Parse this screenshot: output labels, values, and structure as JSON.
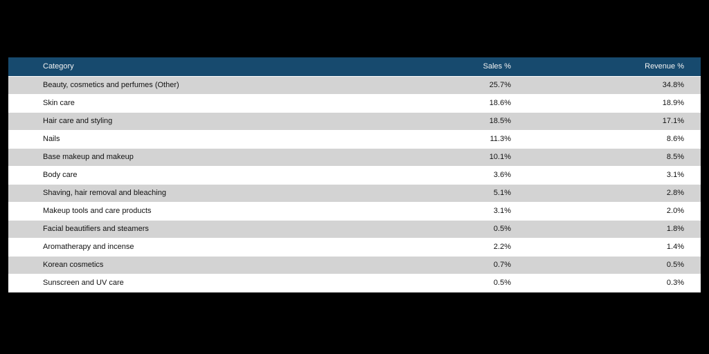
{
  "page": {
    "background_color": "#000000"
  },
  "table": {
    "columns": [
      {
        "id": "category",
        "label": "Category",
        "align": "left"
      },
      {
        "id": "sales",
        "label": "Sales %",
        "align": "right"
      },
      {
        "id": "revenue",
        "label": "Revenue %",
        "align": "right"
      }
    ],
    "colors": {
      "header_bg": "#174a6e",
      "header_text": "#f2f2f2",
      "row_alt_bg": "#d3d3d3",
      "row_bg": "#ffffff",
      "row_text": "#111111",
      "row_border": "#ffffff"
    }
  },
  "chart_data": {
    "type": "table",
    "title": "",
    "columns": [
      "Category",
      "Sales %",
      "Revenue %"
    ],
    "rows": [
      {
        "category": "Beauty, cosmetics and perfumes (Other)",
        "sales": "25.7%",
        "revenue": "34.8%"
      },
      {
        "category": "Skin care",
        "sales": "18.6%",
        "revenue": "18.9%"
      },
      {
        "category": "Hair care and styling",
        "sales": "18.5%",
        "revenue": "17.1%"
      },
      {
        "category": "Nails",
        "sales": "11.3%",
        "revenue": "8.6%"
      },
      {
        "category": "Base makeup and makeup",
        "sales": "10.1%",
        "revenue": "8.5%"
      },
      {
        "category": "Body care",
        "sales": "3.6%",
        "revenue": "3.1%"
      },
      {
        "category": "Shaving, hair removal and bleaching",
        "sales": "5.1%",
        "revenue": "2.8%"
      },
      {
        "category": "Makeup tools and care products",
        "sales": "3.1%",
        "revenue": "2.0%"
      },
      {
        "category": "Facial beautifiers and steamers",
        "sales": "0.5%",
        "revenue": "1.8%"
      },
      {
        "category": "Aromatherapy and incense",
        "sales": "2.2%",
        "revenue": "1.4%"
      },
      {
        "category": "Korean cosmetics",
        "sales": "0.7%",
        "revenue": "0.5%"
      },
      {
        "category": "Sunscreen and UV care",
        "sales": "0.5%",
        "revenue": "0.3%"
      }
    ],
    "series": [
      {
        "name": "Sales %",
        "values": [
          25.7,
          18.6,
          18.5,
          11.3,
          10.1,
          3.6,
          5.1,
          3.1,
          0.5,
          2.2,
          0.7,
          0.5
        ]
      },
      {
        "name": "Revenue %",
        "values": [
          34.8,
          18.9,
          17.1,
          8.6,
          8.5,
          3.1,
          2.8,
          2.0,
          1.8,
          1.4,
          0.5,
          0.3
        ]
      }
    ],
    "categories": [
      "Beauty, cosmetics and perfumes (Other)",
      "Skin care",
      "Hair care and styling",
      "Nails",
      "Base makeup and makeup",
      "Body care",
      "Shaving, hair removal and bleaching",
      "Makeup tools and care products",
      "Facial beautifiers and steamers",
      "Aromatherapy and incense",
      "Korean cosmetics",
      "Sunscreen and UV care"
    ],
    "layout_hints": {
      "row_striping": [
        "#d3d3d3",
        "#ffffff"
      ],
      "header_bg": "#174a6e",
      "page_bg": "#000000"
    }
  }
}
